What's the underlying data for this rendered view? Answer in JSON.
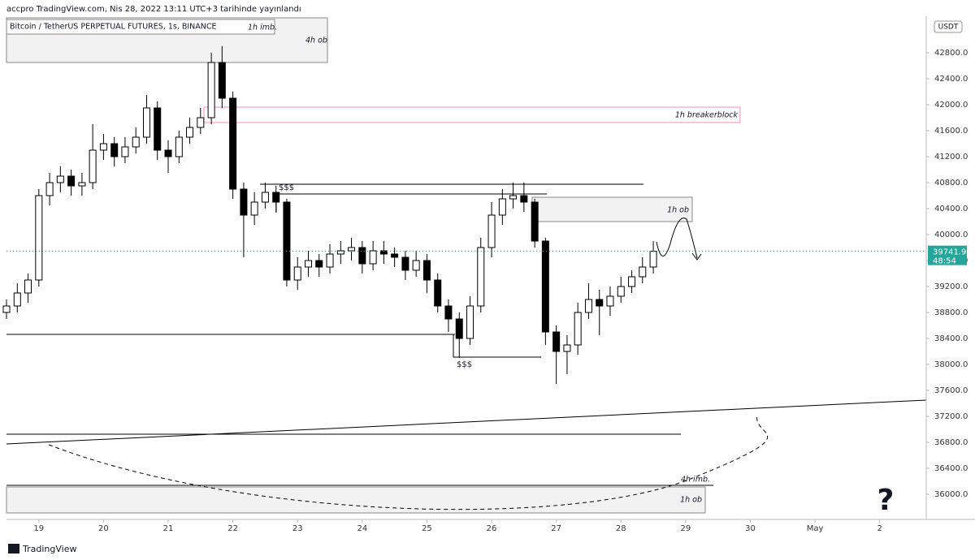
{
  "header": {
    "published": "accpro TradingView.com, Nis 28, 2022 13:11 UTC+3 tarihinde yayınlandı",
    "symbol": "Bitcoin / TetherUS PERPETUAL FUTURES, 1s, BINANCE",
    "currency": "USDT",
    "brand": "TradingView"
  },
  "chart_data": {
    "type": "candlestick",
    "x": [
      18.5,
      18.667,
      18.833,
      19,
      19.167,
      19.333,
      19.5,
      19.667,
      19.833,
      20,
      20.167,
      20.333,
      20.5,
      20.667,
      20.833,
      21,
      21.167,
      21.333,
      21.5,
      21.667,
      21.833,
      22,
      22.167,
      22.333,
      22.5,
      22.667,
      22.833,
      23,
      23.167,
      23.333,
      23.5,
      23.667,
      23.833,
      24,
      24.167,
      24.333,
      24.5,
      24.667,
      24.833,
      25,
      25.167,
      25.333,
      25.5,
      25.667,
      25.833,
      26,
      26.167,
      26.333,
      26.5,
      26.667,
      26.833,
      27,
      27.167,
      27.333,
      27.5,
      27.667,
      27.833,
      28,
      28.167,
      28.333,
      28.5
    ],
    "open": [
      38800,
      38900,
      39100,
      39300,
      40600,
      40800,
      40900,
      40750,
      40800,
      41300,
      41400,
      41200,
      41350,
      41500,
      41950,
      41300,
      41200,
      41500,
      41650,
      41800,
      42650,
      42100,
      40700,
      40300,
      40500,
      40650,
      40500,
      39300,
      39500,
      39600,
      39500,
      39700,
      39750,
      39800,
      39550,
      39750,
      39700,
      39650,
      39450,
      39600,
      39300,
      38900,
      38700,
      38400,
      38900,
      39800,
      40300,
      40550,
      40600,
      40500,
      39900,
      38500,
      38200,
      38300,
      38800,
      39000,
      38900,
      39050,
      39200,
      39350,
      39500
    ],
    "high": [
      39000,
      39250,
      39400,
      40700,
      40950,
      41050,
      41000,
      40950,
      41700,
      41550,
      41500,
      41500,
      41650,
      42150,
      42050,
      41450,
      41600,
      41800,
      41950,
      42800,
      42900,
      42200,
      40800,
      40650,
      40800,
      40750,
      40550,
      39650,
      39750,
      39700,
      39850,
      39900,
      39950,
      39900,
      39900,
      39900,
      39800,
      39750,
      39750,
      39700,
      39400,
      39000,
      38800,
      39050,
      39950,
      40500,
      40700,
      40800,
      40800,
      40550,
      39950,
      38600,
      38450,
      38950,
      39250,
      39150,
      39200,
      39350,
      39450,
      39650,
      39900
    ],
    "low": [
      38700,
      38800,
      38950,
      39200,
      40450,
      40650,
      40600,
      40600,
      40700,
      41150,
      41050,
      41100,
      41250,
      41400,
      41150,
      40950,
      41100,
      41400,
      41550,
      41700,
      41950,
      40550,
      39650,
      40150,
      40400,
      40350,
      39200,
      39150,
      39350,
      39350,
      39400,
      39550,
      39600,
      39400,
      39450,
      39550,
      39500,
      39300,
      39350,
      39100,
      38800,
      38500,
      38100,
      38300,
      38800,
      39650,
      40150,
      40400,
      40350,
      39800,
      38300,
      37700,
      37850,
      38150,
      38700,
      38450,
      38750,
      38950,
      39100,
      39250,
      39400
    ],
    "close": [
      38900,
      39100,
      39300,
      40600,
      40800,
      40900,
      40750,
      40800,
      41300,
      41400,
      41200,
      41350,
      41500,
      41950,
      41300,
      41200,
      41500,
      41650,
      41800,
      42650,
      42100,
      40700,
      40300,
      40500,
      40650,
      40500,
      39300,
      39500,
      39600,
      39500,
      39700,
      39750,
      39800,
      39550,
      39750,
      39700,
      39650,
      39450,
      39600,
      39300,
      38900,
      38700,
      38400,
      38900,
      39800,
      40300,
      40550,
      40600,
      40500,
      39900,
      38500,
      38200,
      38300,
      38800,
      39000,
      38900,
      39050,
      39200,
      39350,
      39500,
      39741.9
    ],
    "up_color": "#ffffff",
    "down_color": "#000000",
    "outline_color": "#000000",
    "last_price": 39741.9,
    "countdown": "48:54",
    "price_color": "#26a69a",
    "xlim": [
      18.5,
      32.72
    ],
    "xticks": [
      19,
      20,
      21,
      22,
      23,
      24,
      25,
      26,
      27,
      28,
      29,
      30,
      {
        "value": 31,
        "label": "May"
      },
      {
        "value": 32,
        "label": "2"
      }
    ],
    "ylim": [
      35612.5,
      43362.5
    ],
    "yticks": [
      {
        "value": 36000,
        "label": "36000.0"
      },
      {
        "value": 36400,
        "label": "36400.0"
      },
      {
        "value": 36800,
        "label": "36800.0"
      },
      {
        "value": 37200,
        "label": "37200.0"
      },
      {
        "value": 37600,
        "label": "37600.0"
      },
      {
        "value": 38000,
        "label": "38000.0"
      },
      {
        "value": 38400,
        "label": "38400.0"
      },
      {
        "value": 38800,
        "label": "38800.0"
      },
      {
        "value": 39200,
        "label": "39200.0"
      },
      {
        "value": 39600,
        "label": "39600.0"
      },
      {
        "value": 40000,
        "label": "40000.0"
      },
      {
        "value": 40400,
        "label": "40400.0"
      },
      {
        "value": 40800,
        "label": "40800.0"
      },
      {
        "value": 41200,
        "label": "41200.0"
      },
      {
        "value": 41600,
        "label": "41600.0"
      },
      {
        "value": 42000,
        "label": "42000.0"
      },
      {
        "value": 42400,
        "label": "42400.0"
      },
      {
        "value": 42800,
        "label": "42800.0"
      }
    ],
    "grid": false,
    "annotations": {
      "imb_1h": "1h imb.",
      "ob_4h": "4h ob",
      "breaker": "1h breakerblock",
      "liq_top": "$$$",
      "ob_1h_top": "1h ob",
      "liq_bottom": "$$$",
      "imb_4h": "4h imb.",
      "ob_1h_bottom": "1h ob",
      "question": "?"
    }
  }
}
